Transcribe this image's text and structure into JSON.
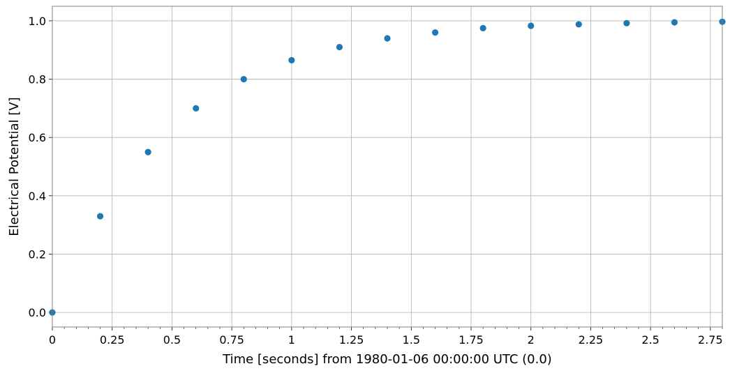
{
  "chart_data": {
    "type": "scatter",
    "title": "",
    "xlabel": "Time [seconds] from 1980-01-06 00:00:00 UTC (0.0)",
    "ylabel": "Electrical Potential [V]",
    "xlim": [
      0,
      2.8
    ],
    "ylim": [
      -0.05,
      1.05
    ],
    "grid": true,
    "x_ticks": [
      {
        "value": 0,
        "label": "0"
      },
      {
        "value": 0.25,
        "label": "0.25"
      },
      {
        "value": 0.5,
        "label": "0.5"
      },
      {
        "value": 0.75,
        "label": "0.75"
      },
      {
        "value": 1,
        "label": "1"
      },
      {
        "value": 1.25,
        "label": "1.25"
      },
      {
        "value": 1.5,
        "label": "1.5"
      },
      {
        "value": 1.75,
        "label": "1.75"
      },
      {
        "value": 2,
        "label": "2"
      },
      {
        "value": 2.25,
        "label": "2.25"
      },
      {
        "value": 2.5,
        "label": "2.5"
      },
      {
        "value": 2.75,
        "label": "2.75"
      }
    ],
    "y_ticks": [
      {
        "value": 0,
        "label": "0.0"
      },
      {
        "value": 0.2,
        "label": "0.2"
      },
      {
        "value": 0.4,
        "label": "0.4"
      },
      {
        "value": 0.6,
        "label": "0.6"
      },
      {
        "value": 0.8,
        "label": "0.8"
      },
      {
        "value": 1.0,
        "label": "1.0"
      }
    ],
    "series": [
      {
        "color": "#1f77b4",
        "x": [
          0,
          0.2,
          0.4,
          0.6,
          0.8,
          1.0,
          1.2,
          1.4,
          1.6,
          1.8,
          2.0,
          2.2,
          2.4,
          2.6,
          2.8
        ],
        "y": [
          0.0,
          0.33,
          0.55,
          0.7,
          0.8,
          0.865,
          0.91,
          0.94,
          0.96,
          0.975,
          0.983,
          0.988,
          0.992,
          0.995,
          0.997
        ]
      }
    ]
  }
}
